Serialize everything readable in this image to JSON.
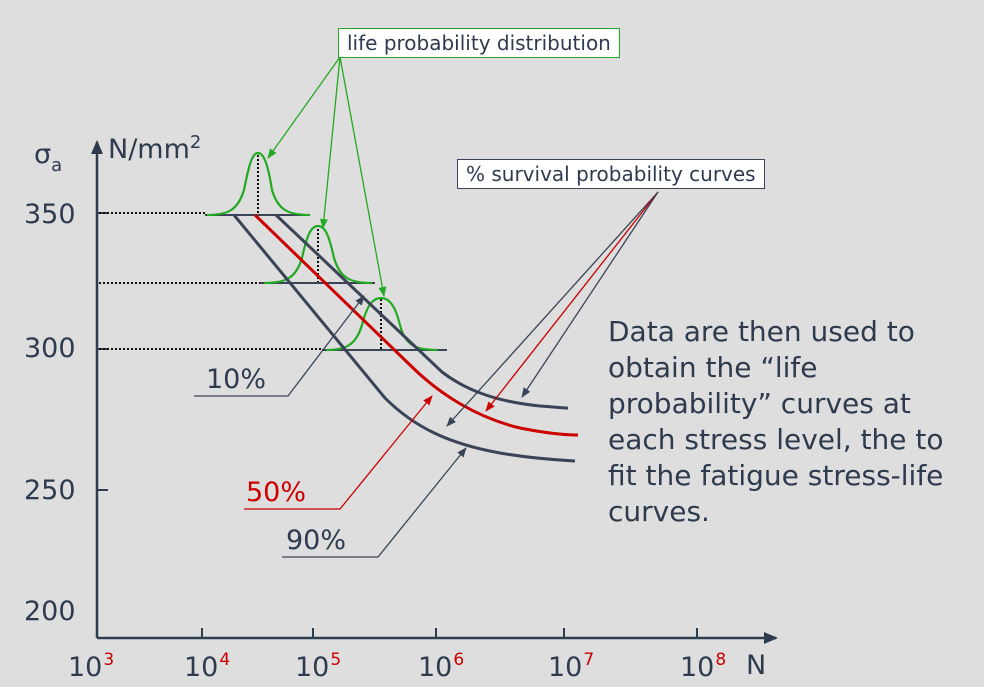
{
  "y_axis": {
    "symbol_main": "σ",
    "symbol_sub": "a",
    "unit_main": "N/mm",
    "unit_sup": "2",
    "ticks": [
      "350",
      "300",
      "250",
      "200"
    ]
  },
  "x_axis": {
    "title": "N",
    "tick_base": "10",
    "tick_exponents": [
      "3",
      "4",
      "5",
      "6",
      "7",
      "8"
    ]
  },
  "labels": {
    "life_distribution": "life probability distribution",
    "survival_curves": "% survival probability curves",
    "pct_10": "10%",
    "pct_50": "50%",
    "pct_90": "90%"
  },
  "description_lines": [
    "Data are then used to",
    "obtain the “life",
    "probability” curves at",
    "each stress level, the to",
    "fit the fatigue stress-life",
    "curves."
  ],
  "colors": {
    "axis": "#2e3b4e",
    "curve_gray": "#3a4456",
    "curve_red": "#cc0000",
    "distribution_green": "#22aa22",
    "background": "#dedede"
  }
}
